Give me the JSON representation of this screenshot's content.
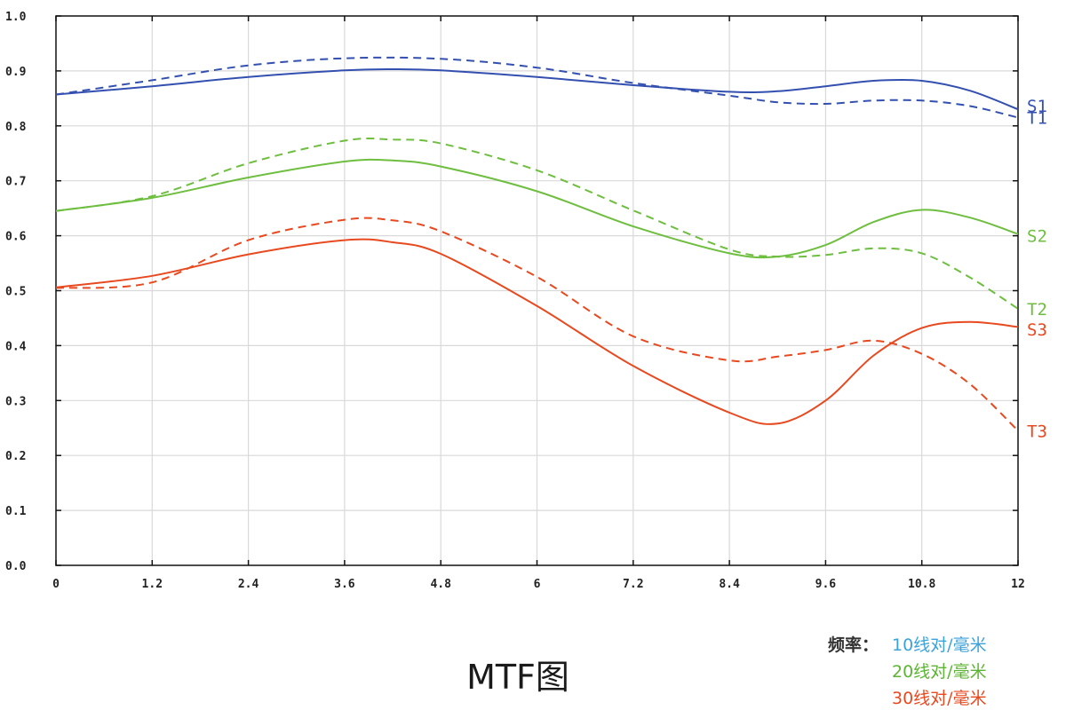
{
  "caption": "MTF图",
  "legend": {
    "title": "频率：",
    "items": [
      {
        "label": "10线对/毫米",
        "color": "#3ba3dc"
      },
      {
        "label": "20线对/毫米",
        "color": "#5cb532"
      },
      {
        "label": "30线对/毫米",
        "color": "#e8491f"
      }
    ]
  },
  "chart_data": {
    "type": "line",
    "title": "",
    "xlabel": "",
    "ylabel": "",
    "xlim": [
      0,
      12
    ],
    "ylim": [
      0,
      1.0
    ],
    "grid": true,
    "x_ticks": [
      "0",
      "1.2",
      "2.4",
      "3.6",
      "4.8",
      "6",
      "7.2",
      "8.4",
      "9.6",
      "10.8",
      "12"
    ],
    "y_ticks": [
      "0.0",
      "0.1",
      "0.2",
      "0.3",
      "0.4",
      "0.5",
      "0.6",
      "0.7",
      "0.8",
      "0.9",
      "1.0"
    ],
    "series": [
      {
        "name": "S1",
        "color": "#3350b0",
        "dash": false,
        "points": [
          [
            0,
            0.857
          ],
          [
            1.2,
            0.872
          ],
          [
            2.4,
            0.889
          ],
          [
            3.6,
            0.901
          ],
          [
            4.2,
            0.903
          ],
          [
            4.8,
            0.901
          ],
          [
            6,
            0.889
          ],
          [
            7.2,
            0.874
          ],
          [
            8.4,
            0.862
          ],
          [
            9,
            0.863
          ],
          [
            9.6,
            0.872
          ],
          [
            10.2,
            0.882
          ],
          [
            10.8,
            0.882
          ],
          [
            11.4,
            0.864
          ],
          [
            12,
            0.83
          ]
        ]
      },
      {
        "name": "T1",
        "color": "#3350b0",
        "dash": true,
        "points": [
          [
            0,
            0.857
          ],
          [
            1.2,
            0.883
          ],
          [
            2.4,
            0.91
          ],
          [
            3.6,
            0.923
          ],
          [
            4.8,
            0.922
          ],
          [
            6,
            0.906
          ],
          [
            7.2,
            0.878
          ],
          [
            8.4,
            0.855
          ],
          [
            9,
            0.843
          ],
          [
            9.6,
            0.84
          ],
          [
            10.2,
            0.846
          ],
          [
            10.8,
            0.846
          ],
          [
            11.4,
            0.836
          ],
          [
            12,
            0.815
          ]
        ]
      },
      {
        "name": "S2",
        "color": "#6ebe3f",
        "dash": false,
        "points": [
          [
            0,
            0.645
          ],
          [
            1.2,
            0.669
          ],
          [
            2.4,
            0.706
          ],
          [
            3.6,
            0.735
          ],
          [
            4.2,
            0.737
          ],
          [
            4.8,
            0.726
          ],
          [
            6,
            0.681
          ],
          [
            7.2,
            0.617
          ],
          [
            8.4,
            0.568
          ],
          [
            9,
            0.562
          ],
          [
            9.6,
            0.583
          ],
          [
            10.2,
            0.625
          ],
          [
            10.8,
            0.647
          ],
          [
            11.4,
            0.633
          ],
          [
            12,
            0.603
          ]
        ]
      },
      {
        "name": "T2",
        "color": "#6ebe3f",
        "dash": true,
        "points": [
          [
            0,
            0.645
          ],
          [
            1.2,
            0.672
          ],
          [
            2.4,
            0.732
          ],
          [
            3.6,
            0.773
          ],
          [
            4.2,
            0.775
          ],
          [
            4.8,
            0.768
          ],
          [
            6,
            0.719
          ],
          [
            7.2,
            0.646
          ],
          [
            8.4,
            0.575
          ],
          [
            9,
            0.562
          ],
          [
            9.6,
            0.565
          ],
          [
            10.2,
            0.577
          ],
          [
            10.8,
            0.568
          ],
          [
            11.4,
            0.524
          ],
          [
            12,
            0.467
          ]
        ]
      },
      {
        "name": "S3",
        "color": "#e8491f",
        "dash": false,
        "points": [
          [
            0,
            0.506
          ],
          [
            1.2,
            0.527
          ],
          [
            2.4,
            0.566
          ],
          [
            3.6,
            0.592
          ],
          [
            4.2,
            0.588
          ],
          [
            4.8,
            0.567
          ],
          [
            6,
            0.472
          ],
          [
            7.2,
            0.363
          ],
          [
            8.4,
            0.278
          ],
          [
            9,
            0.258
          ],
          [
            9.6,
            0.3
          ],
          [
            10.2,
            0.382
          ],
          [
            10.8,
            0.432
          ],
          [
            11.4,
            0.443
          ],
          [
            12,
            0.434
          ]
        ]
      },
      {
        "name": "T3",
        "color": "#e8491f",
        "dash": true,
        "points": [
          [
            0,
            0.505
          ],
          [
            1.2,
            0.515
          ],
          [
            2.4,
            0.592
          ],
          [
            3.6,
            0.629
          ],
          [
            4.2,
            0.628
          ],
          [
            4.8,
            0.608
          ],
          [
            6,
            0.525
          ],
          [
            7.2,
            0.417
          ],
          [
            8.4,
            0.373
          ],
          [
            9,
            0.38
          ],
          [
            9.6,
            0.392
          ],
          [
            10.2,
            0.409
          ],
          [
            10.8,
            0.385
          ],
          [
            11.4,
            0.33
          ],
          [
            12,
            0.245
          ]
        ]
      }
    ],
    "end_labels": [
      {
        "text": "S1",
        "y": 0.837,
        "color": "#3350b0"
      },
      {
        "text": "T1",
        "y": 0.815,
        "color": "#3350b0"
      },
      {
        "text": "S2",
        "y": 0.6,
        "color": "#6ebe3f"
      },
      {
        "text": "T2",
        "y": 0.467,
        "color": "#6ebe3f"
      },
      {
        "text": "S3",
        "y": 0.43,
        "color": "#e8491f"
      },
      {
        "text": "T3",
        "y": 0.245,
        "color": "#e8491f"
      }
    ]
  }
}
